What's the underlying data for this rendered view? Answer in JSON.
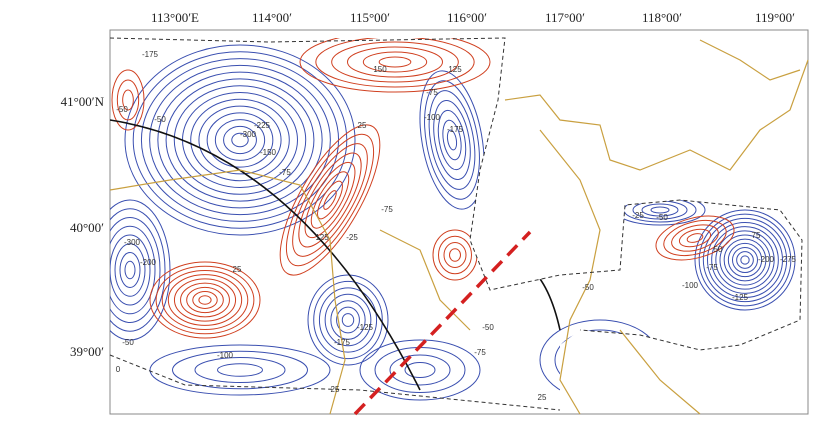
{
  "map": {
    "longitude_labels": [
      "113°00′E",
      "114°00′",
      "115°00′",
      "116°00′",
      "117°00′",
      "118°00′",
      "119°00′"
    ],
    "latitude_labels": [
      "41°00′N",
      "40°00′",
      "39°00′"
    ],
    "contour_labels": [
      "-175",
      "150",
      "125",
      "-75",
      "-50",
      "-50",
      "-300",
      "-225",
      "-150",
      "25",
      "-100",
      "-175",
      "-75",
      "125",
      "-25",
      "-75",
      "-300",
      "-200",
      "25",
      "-125",
      "-175",
      "0",
      "-50",
      "-100",
      "-50",
      "-75",
      "-50",
      "25",
      "-25",
      "-50",
      "75",
      "50",
      "-75",
      "-100",
      "-125",
      "-200",
      "-275",
      "25"
    ]
  }
}
